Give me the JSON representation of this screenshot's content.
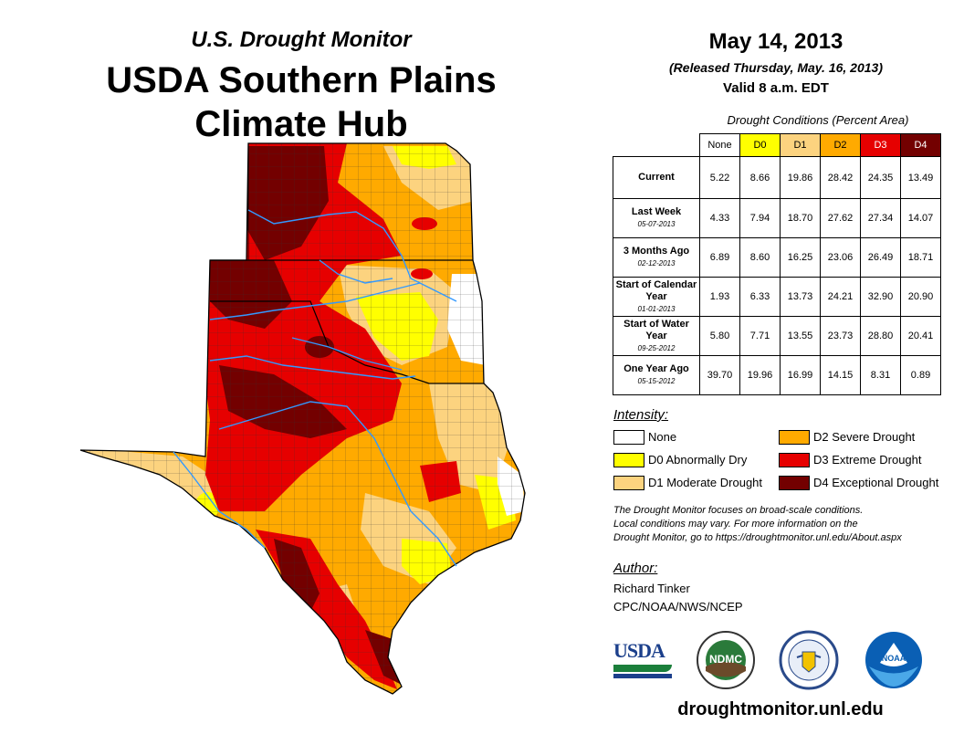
{
  "header": {
    "subtitle": "U.S. Drought Monitor",
    "title_line1": "USDA Southern Plains",
    "title_line2": "Climate Hub"
  },
  "map_info": {
    "date": "May 14, 2013",
    "released": "(Released Thursday, May. 16, 2013)",
    "valid": "Valid 8 a.m. EDT"
  },
  "table": {
    "caption": "Drought Conditions (Percent Area)",
    "columns": [
      "None",
      "D0",
      "D1",
      "D2",
      "D3",
      "D4"
    ],
    "column_colors": [
      "#ffffff",
      "#ffff00",
      "#fcd37f",
      "#ffaa00",
      "#e60000",
      "#730000"
    ],
    "column_text_colors": [
      "#000000",
      "#000000",
      "#000000",
      "#000000",
      "#ffffff",
      "#ffffff"
    ],
    "rows": [
      {
        "label": "Current",
        "date": "",
        "values": [
          "5.22",
          "8.66",
          "19.86",
          "28.42",
          "24.35",
          "13.49"
        ]
      },
      {
        "label": "Last Week",
        "date": "05-07-2013",
        "values": [
          "4.33",
          "7.94",
          "18.70",
          "27.62",
          "27.34",
          "14.07"
        ]
      },
      {
        "label": "3 Months Ago",
        "date": "02-12-2013",
        "values": [
          "6.89",
          "8.60",
          "16.25",
          "23.06",
          "26.49",
          "18.71"
        ]
      },
      {
        "label": "Start of Calendar Year",
        "date": "01-01-2013",
        "values": [
          "1.93",
          "6.33",
          "13.73",
          "24.21",
          "32.90",
          "20.90"
        ]
      },
      {
        "label": "Start of Water Year",
        "date": "09-25-2012",
        "values": [
          "5.80",
          "7.71",
          "13.55",
          "23.73",
          "28.80",
          "20.41"
        ]
      },
      {
        "label": "One Year Ago",
        "date": "05-15-2012",
        "values": [
          "39.70",
          "19.96",
          "16.99",
          "14.15",
          "8.31",
          "0.89"
        ]
      }
    ]
  },
  "legend": {
    "heading": "Intensity:",
    "items": [
      {
        "label": "None",
        "color": "#ffffff"
      },
      {
        "label": "D0 Abnormally Dry",
        "color": "#ffff00"
      },
      {
        "label": "D1 Moderate Drought",
        "color": "#fcd37f"
      },
      {
        "label": "D2 Severe Drought",
        "color": "#ffaa00"
      },
      {
        "label": "D3 Extreme Drought",
        "color": "#e60000"
      },
      {
        "label": "D4 Exceptional Drought",
        "color": "#730000"
      }
    ]
  },
  "note": {
    "line1": "The Drought Monitor focuses on broad-scale conditions.",
    "line2": "Local conditions may vary. For more information on the",
    "line3": "Drought Monitor, go to https://droughtmonitor.unl.edu/About.aspx"
  },
  "author": {
    "heading": "Author:",
    "name": "Richard Tinker",
    "org": "CPC/NOAA/NWS/NCEP"
  },
  "logos": {
    "usda": "USDA",
    "ndmc": "NDMC",
    "noaa": "NOAA"
  },
  "footer_url": "droughtmonitor.unl.edu"
}
